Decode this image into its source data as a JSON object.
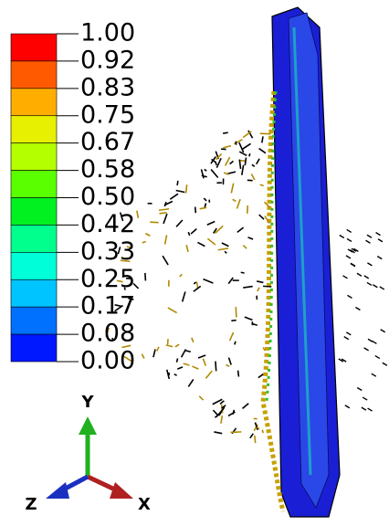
{
  "legend": {
    "labels": [
      "1.00",
      "0.92",
      "0.83",
      "0.75",
      "0.67",
      "0.58",
      "0.50",
      "0.42",
      "0.33",
      "0.25",
      "0.17",
      "0.08",
      "0.00"
    ],
    "colors": [
      "#ff0000",
      "#ff5a00",
      "#ffae00",
      "#e6f000",
      "#b4ff00",
      "#5aff00",
      "#00f020",
      "#00ff8c",
      "#00ffd8",
      "#00c4ff",
      "#0070ff",
      "#0018ff"
    ]
  },
  "triad": {
    "y": "Y",
    "z": "Z",
    "x": "X"
  }
}
